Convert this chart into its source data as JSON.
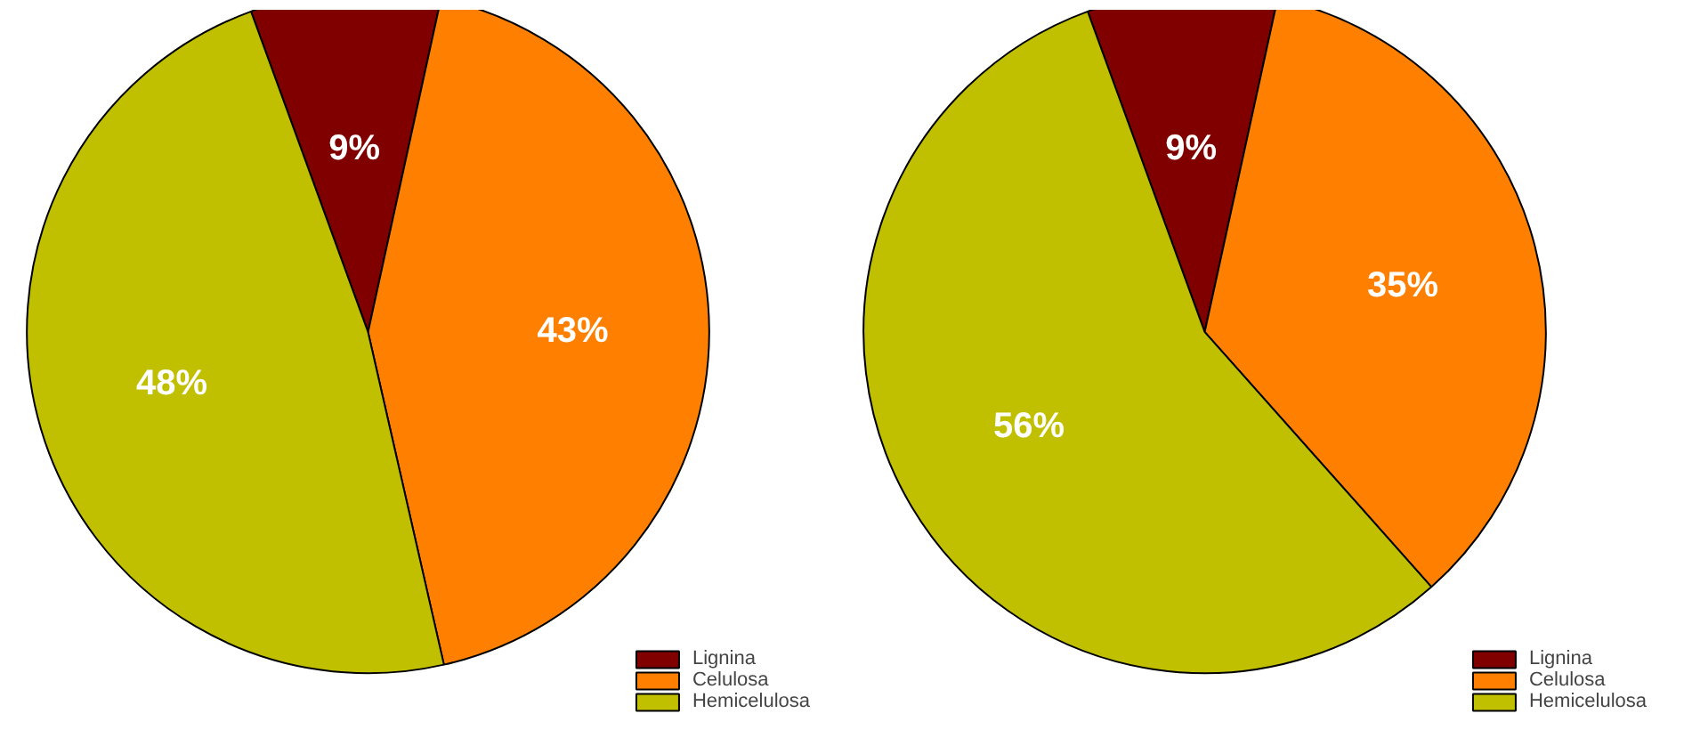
{
  "chart_data": [
    {
      "type": "pie",
      "categories": [
        "Lignina",
        "Celulosa",
        "Hemicelulosa"
      ],
      "values": [
        9,
        43,
        48
      ],
      "value_labels": [
        "9%",
        "43%",
        "48%"
      ],
      "colors": [
        "#800000",
        "#ff8000",
        "#c0c000"
      ],
      "legend": "bottom right"
    },
    {
      "type": "pie",
      "categories": [
        "Lignina",
        "Celulosa",
        "Hemicelulosa"
      ],
      "values": [
        9,
        35,
        56
      ],
      "value_labels": [
        "9%",
        "35%",
        "56%"
      ],
      "colors": [
        "#800000",
        "#ff8000",
        "#c0c000"
      ],
      "legend": "bottom right"
    }
  ]
}
